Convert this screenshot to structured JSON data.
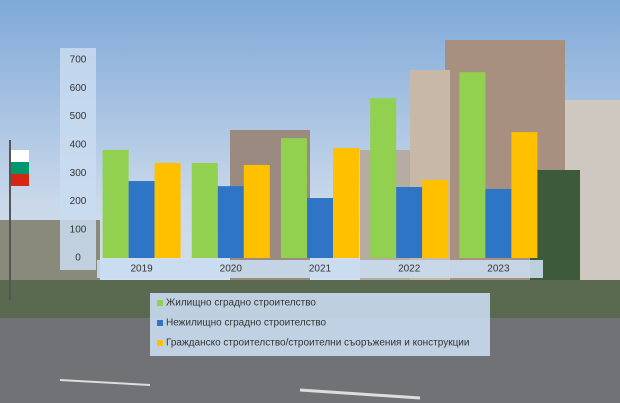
{
  "chart_data": {
    "type": "bar",
    "categories": [
      "2019",
      "2020",
      "2021",
      "2022",
      "2023"
    ],
    "series": [
      {
        "name": "Жилищно сградно строителство",
        "color": "#92d050",
        "values": [
          382,
          336,
          424,
          565,
          657
        ]
      },
      {
        "name": "Нежилищно сградно строителство",
        "color": "#2e75c6",
        "values": [
          272,
          254,
          212,
          251,
          244
        ]
      },
      {
        "name": "Гражданско строителство/строителни съоръжения и конструкции",
        "color": "#ffc000",
        "values": [
          336,
          329,
          389,
          276,
          445
        ]
      }
    ],
    "ylim": [
      0,
      700
    ],
    "yticks": [
      0,
      100,
      200,
      300,
      400,
      500,
      600,
      700
    ],
    "legend": "bottom"
  }
}
